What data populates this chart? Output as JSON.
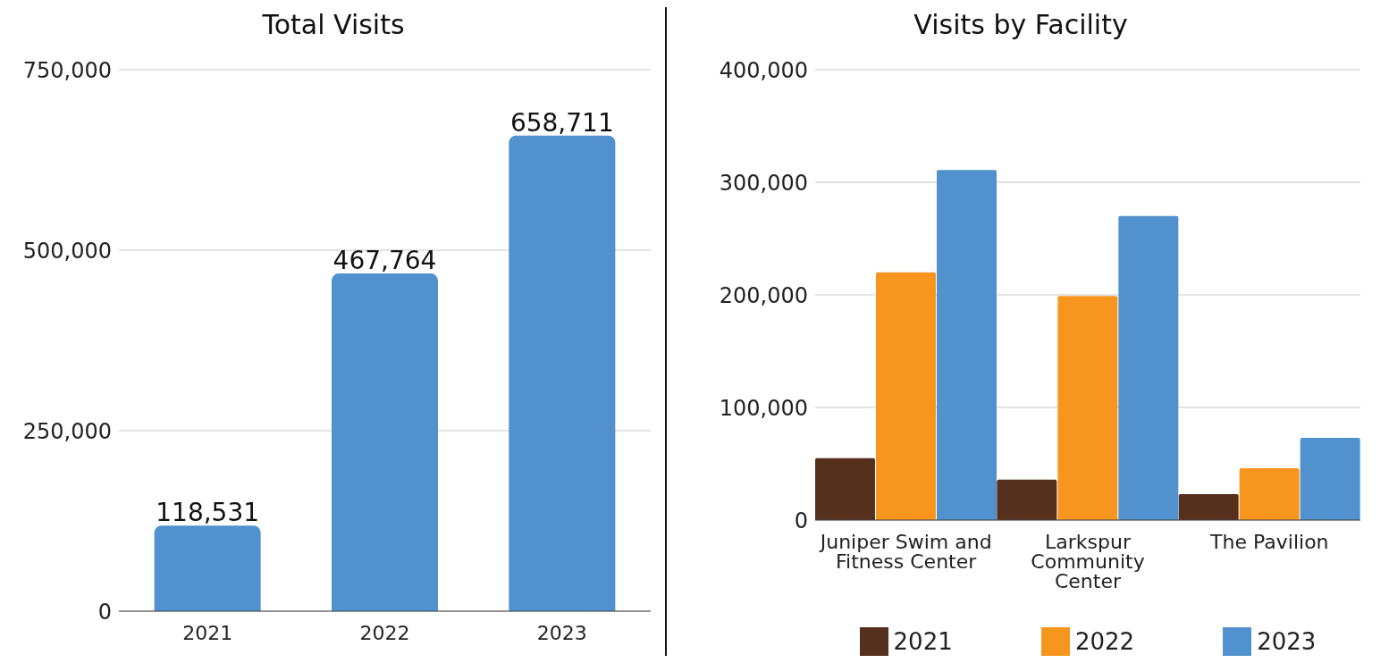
{
  "chart_data": [
    {
      "type": "bar",
      "title": "Total Visits",
      "categories": [
        "2021",
        "2022",
        "2023"
      ],
      "values": [
        118531,
        467764,
        658711
      ],
      "value_labels": [
        "118,531",
        "467,764",
        "658,711"
      ],
      "color": "#5191cd",
      "ylim": [
        0,
        750000
      ],
      "yticks": [
        0,
        {
          "value": 250000,
          "label": "250,000"
        },
        {
          "value": 500000,
          "label": "500,000"
        },
        {
          "value": 750000,
          "label": "750,000"
        }
      ],
      "grid": "y"
    },
    {
      "type": "bar",
      "title": "Visits by Facility",
      "categories": [
        "Juniper Swim and Fitness Center",
        "Larkspur Community Center",
        "The Pavilion"
      ],
      "series": [
        {
          "name": "2021",
          "color": "#55301c",
          "values": [
            55000,
            36000,
            23000
          ]
        },
        {
          "name": "2022",
          "color": "#f7961f",
          "values": [
            220000,
            199000,
            46000
          ]
        },
        {
          "name": "2023",
          "color": "#5191cd",
          "values": [
            311000,
            270000,
            73000
          ]
        }
      ],
      "ylim": [
        0,
        400000
      ],
      "yticks": [
        0,
        {
          "value": 100000,
          "label": "100,000"
        },
        {
          "value": 200000,
          "label": "200,000"
        },
        {
          "value": 300000,
          "label": "300,000"
        },
        {
          "value": 400000,
          "label": "400,000"
        }
      ],
      "grid": "y",
      "legend": "bottom"
    }
  ]
}
